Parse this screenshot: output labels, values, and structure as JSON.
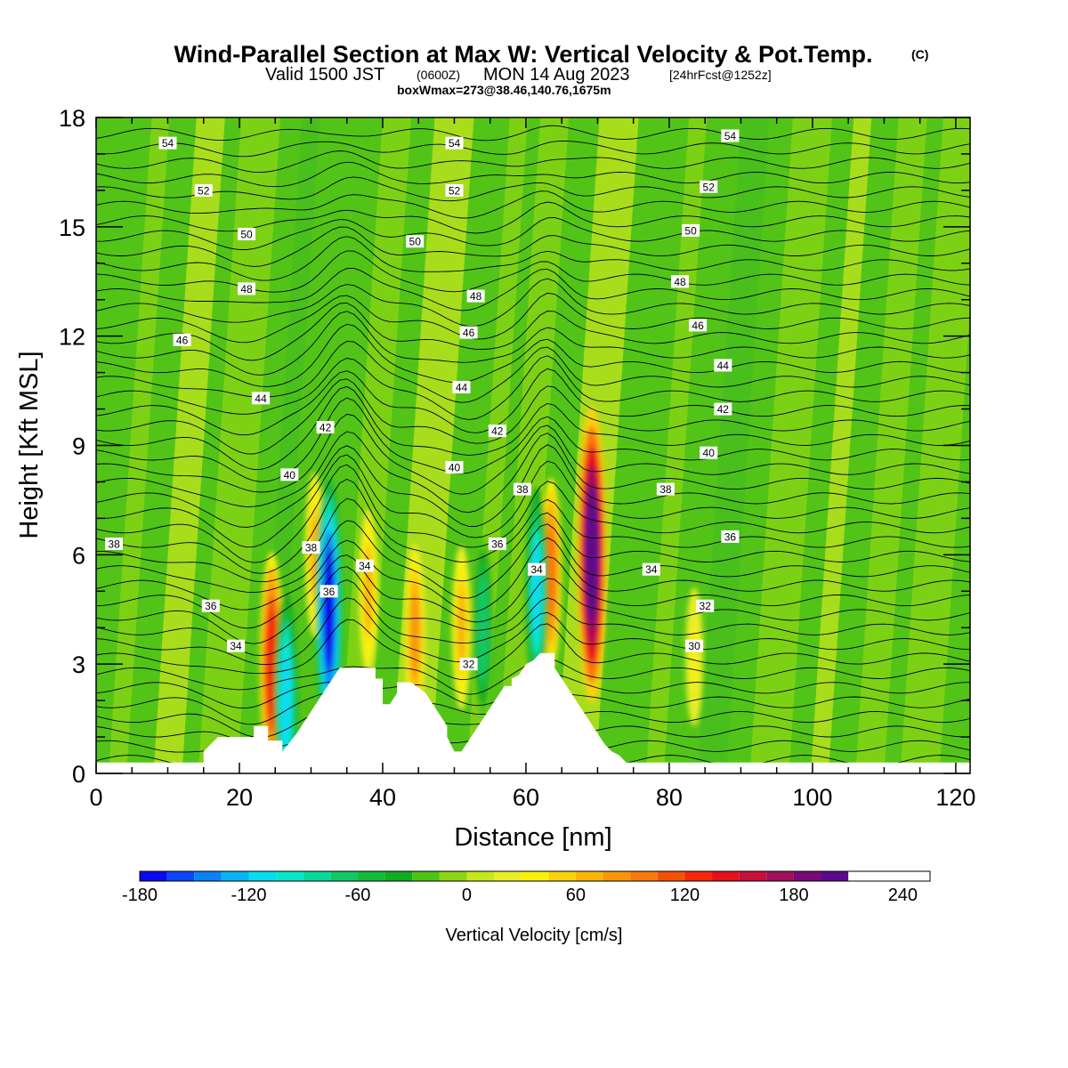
{
  "title": {
    "main": "Wind-Parallel Section at Max W: Vertical Velocity & Pot.Temp.",
    "copyright_mark": "(C)",
    "valid_prefix": "Valid 1500 JST",
    "valid_z": "(0600Z)",
    "valid_date": "MON 14 Aug 2023",
    "forecast": "[24hrFcst@1252z]",
    "boxline": "boxWmax=273@38.46,140.76,1675m"
  },
  "chart_data": {
    "type": "heatmap",
    "title": "Wind-Parallel Section at Max W: Vertical Velocity & Pot.Temp.",
    "xlabel": "Distance [nm]",
    "ylabel": "Height [Kft MSL]",
    "xlim": [
      0,
      122
    ],
    "ylim": [
      0,
      18
    ],
    "x_ticks": [
      0,
      20,
      40,
      60,
      80,
      100,
      120
    ],
    "y_ticks": [
      0,
      3,
      6,
      9,
      12,
      15,
      18
    ],
    "grid": false,
    "colorbar": {
      "label": "Vertical Velocity [cm/s]",
      "ticks": [
        -180,
        -120,
        -60,
        0,
        60,
        120,
        180,
        240
      ],
      "levels": [
        -180,
        -165,
        -150,
        -135,
        -120,
        -105,
        -90,
        -75,
        -60,
        -45,
        -30,
        -15,
        0,
        15,
        30,
        45,
        60,
        75,
        90,
        105,
        120,
        135,
        150,
        165,
        180,
        195,
        210,
        225,
        240,
        255
      ],
      "colors": [
        "#0a0af0",
        "#0a46f5",
        "#0a82f5",
        "#08b4f5",
        "#08dcf0",
        "#08e8c8",
        "#0ad89a",
        "#12c864",
        "#14bc3c",
        "#12ac1c",
        "#4cc414",
        "#8cd614",
        "#c6e61e",
        "#e8ee28",
        "#f8f00a",
        "#fad20a",
        "#fab40a",
        "#fa960a",
        "#fa780a",
        "#f5500a",
        "#f5280a",
        "#e6101e",
        "#c8103c",
        "#a0105a",
        "#780a78",
        "#5a0a8c"
      ]
    },
    "terrain": {
      "x": [
        0,
        15,
        15,
        17,
        20,
        22,
        22,
        24,
        24,
        26,
        26,
        28,
        29,
        30,
        31,
        32,
        33,
        34,
        35,
        37,
        38,
        39,
        39,
        40,
        40,
        41,
        42,
        42,
        43,
        44,
        46,
        47,
        48,
        49,
        49,
        50,
        51,
        52,
        53,
        54,
        55,
        56,
        57,
        58,
        58,
        59,
        60,
        61,
        62,
        63,
        64,
        64,
        65,
        66,
        67,
        68,
        69,
        70,
        71,
        72,
        73,
        74,
        74,
        122
      ],
      "h": [
        0.3,
        0.3,
        0.6,
        1.0,
        1.0,
        1.0,
        1.3,
        1.3,
        0.9,
        0.9,
        0.6,
        1.1,
        1.4,
        1.7,
        2.0,
        2.3,
        2.6,
        2.9,
        2.9,
        2.9,
        2.9,
        2.9,
        2.6,
        2.6,
        1.9,
        1.9,
        2.2,
        2.5,
        2.5,
        2.5,
        2.2,
        1.9,
        1.6,
        1.3,
        1.0,
        0.6,
        0.6,
        0.9,
        1.2,
        1.5,
        1.8,
        2.1,
        2.4,
        2.4,
        2.6,
        2.7,
        3.0,
        3.1,
        3.3,
        3.3,
        3.3,
        2.9,
        2.6,
        2.3,
        2.0,
        1.7,
        1.4,
        1.1,
        0.8,
        0.6,
        0.5,
        0.3,
        0.3,
        0.3
      ]
    },
    "theta_contour_labels": [
      {
        "value": "54",
        "x": 10,
        "y": 17.3
      },
      {
        "value": "52",
        "x": 15,
        "y": 16.0
      },
      {
        "value": "50",
        "x": 21,
        "y": 14.8
      },
      {
        "value": "48",
        "x": 21,
        "y": 13.3
      },
      {
        "value": "46",
        "x": 12,
        "y": 11.9
      },
      {
        "value": "44",
        "x": 23,
        "y": 10.3
      },
      {
        "value": "42",
        "x": 32,
        "y": 9.5
      },
      {
        "value": "40",
        "x": 27,
        "y": 8.2
      },
      {
        "value": "38",
        "x": 30,
        "y": 6.2
      },
      {
        "value": "38",
        "x": 2.5,
        "y": 6.3
      },
      {
        "value": "36",
        "x": 16,
        "y": 4.6
      },
      {
        "value": "34",
        "x": 19.5,
        "y": 3.5
      },
      {
        "value": "36",
        "x": 32.5,
        "y": 5.0
      },
      {
        "value": "34",
        "x": 37.5,
        "y": 5.7
      },
      {
        "value": "54",
        "x": 50,
        "y": 17.3
      },
      {
        "value": "52",
        "x": 50,
        "y": 16.0
      },
      {
        "value": "50",
        "x": 44.5,
        "y": 14.6
      },
      {
        "value": "48",
        "x": 53,
        "y": 13.1
      },
      {
        "value": "46",
        "x": 52,
        "y": 12.1
      },
      {
        "value": "44",
        "x": 51,
        "y": 10.6
      },
      {
        "value": "42",
        "x": 56,
        "y": 9.4
      },
      {
        "value": "40",
        "x": 50,
        "y": 8.4
      },
      {
        "value": "38",
        "x": 59.5,
        "y": 7.8
      },
      {
        "value": "36",
        "x": 56,
        "y": 6.3
      },
      {
        "value": "34",
        "x": 61.5,
        "y": 5.6
      },
      {
        "value": "32",
        "x": 52,
        "y": 3.0
      },
      {
        "value": "54",
        "x": 88.5,
        "y": 17.5
      },
      {
        "value": "52",
        "x": 85.5,
        "y": 16.1
      },
      {
        "value": "50",
        "x": 83,
        "y": 14.9
      },
      {
        "value": "48",
        "x": 81.5,
        "y": 13.5
      },
      {
        "value": "46",
        "x": 84,
        "y": 12.3
      },
      {
        "value": "44",
        "x": 87.5,
        "y": 11.2
      },
      {
        "value": "42",
        "x": 87.5,
        "y": 10.0
      },
      {
        "value": "40",
        "x": 85.5,
        "y": 8.8
      },
      {
        "value": "38",
        "x": 79.5,
        "y": 7.8
      },
      {
        "value": "36",
        "x": 88.5,
        "y": 6.5
      },
      {
        "value": "34",
        "x": 77.5,
        "y": 5.6
      },
      {
        "value": "32",
        "x": 85,
        "y": 4.6
      },
      {
        "value": "30",
        "x": 83.5,
        "y": 3.5
      }
    ],
    "updraft_cores": [
      {
        "x": 24.5,
        "y": 3.0,
        "w": 130
      },
      {
        "x": 30.5,
        "y": 6.0,
        "w": 60
      },
      {
        "x": 38.0,
        "y": 5.0,
        "w": 60
      },
      {
        "x": 44.5,
        "y": 3.8,
        "w": 80
      },
      {
        "x": 51.0,
        "y": 4.0,
        "w": 60
      },
      {
        "x": 63.5,
        "y": 5.5,
        "w": 90
      },
      {
        "x": 69.2,
        "y": 6.0,
        "w": 215
      },
      {
        "x": 83.5,
        "y": 3.2,
        "w": 30
      }
    ],
    "downdraft_cores": [
      {
        "x": 32.5,
        "y": 4.5,
        "w": -175
      },
      {
        "x": 26.5,
        "y": 2.0,
        "w": -120
      },
      {
        "x": 54.0,
        "y": 4.0,
        "w": -75
      },
      {
        "x": 61.5,
        "y": 5.0,
        "w": -110
      }
    ]
  }
}
